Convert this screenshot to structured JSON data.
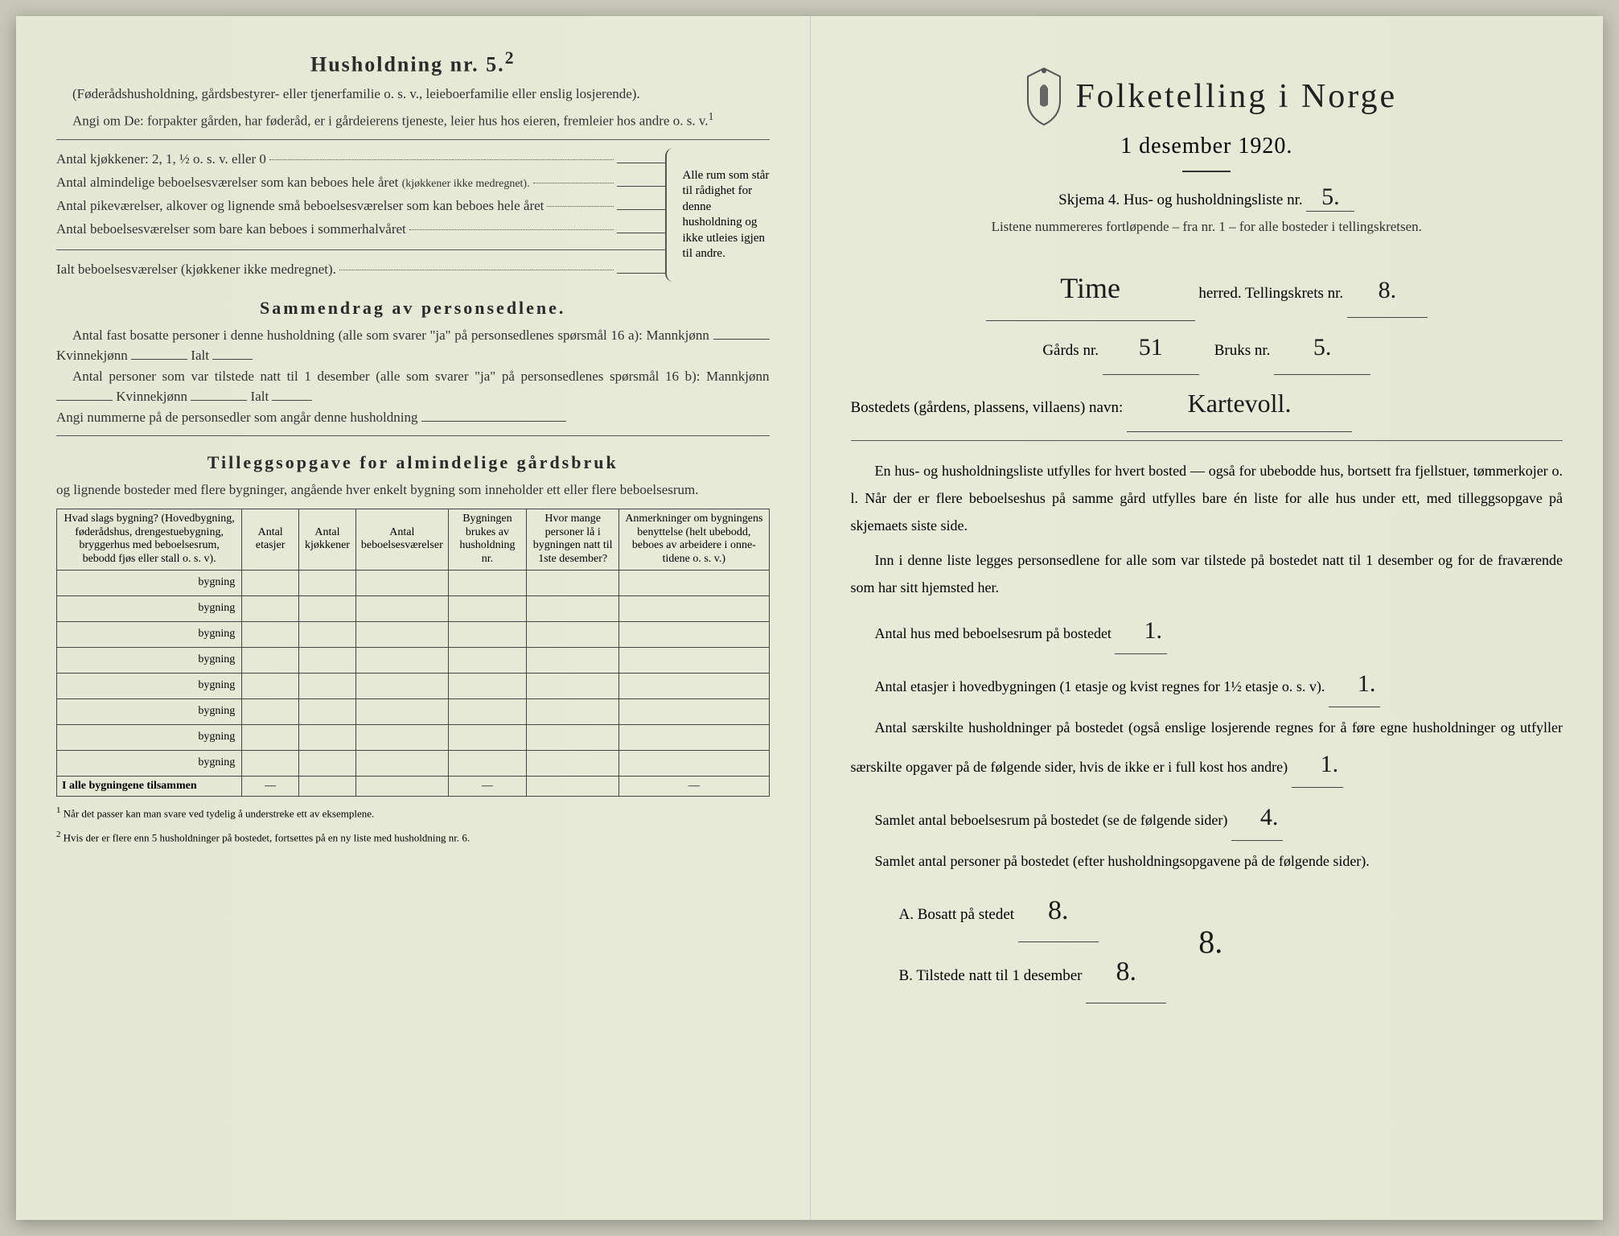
{
  "left": {
    "h5_title": "Husholdning nr. 5.",
    "h5_sup": "2",
    "h5_sub": "(Føderådshusholdning, gårdsbestyrer- eller tjenerfamilie o. s. v., leieboerfamilie eller enslig losjerende).",
    "angi": "Angi om De: forpakter gården, har føderåd, er i gårdeierens tjeneste, leier hus hos eieren, fremleier hos andre o. s. v.",
    "angi_sup": "1",
    "rooms": {
      "kjokken": "Antal kjøkkener: 2, 1, ½ o. s. v. eller 0",
      "almindelige": "Antal almindelige beboelsesværelser som kan beboes hele året",
      "almindelige_note": "(kjøkkener ikke medregnet).",
      "pike": "Antal pikeværelser, alkover og lignende små beboelsesværelser som kan beboes hele året",
      "sommer": "Antal beboelsesværelser som bare kan beboes i sommerhalvåret",
      "ialt": "Ialt beboelsesværelser (kjøkkener ikke medregnet).",
      "brace_text": "Alle rum som står til rådighet for denne husholdning og ikke utleies igjen til andre."
    },
    "sammendrag_title": "Sammendrag av personsedlene.",
    "sammendrag_a": "Antal fast bosatte personer i denne husholdning (alle som svarer \"ja\" på personsedlenes spørsmål 16 a): Mannkjønn",
    "kvinne": "Kvinnekjønn",
    "ialt_lbl": "Ialt",
    "sammendrag_b": "Antal personer som var tilstede natt til 1 desember (alle som svarer \"ja\" på personsedlenes spørsmål 16 b): Mannkjønn",
    "angi_num": "Angi nummerne på de personsedler som angår denne husholdning",
    "tillegg_title": "Tilleggsopgave for almindelige gårdsbruk",
    "tillegg_sub": "og lignende bosteder med flere bygninger, angående hver enkelt bygning som inneholder ett eller flere beboelsesrum.",
    "table": {
      "headers": [
        "Hvad slags bygning?\n(Hovedbygning, føderådshus, drengestuebygning, bryggerhus med beboelsesrum, bebodd fjøs eller stall o. s. v).",
        "Antal etasjer",
        "Antal kjøkkener",
        "Antal beboelsesværelser",
        "Bygningen brukes av husholdning nr.",
        "Hvor mange personer lå i bygningen natt til 1ste desember?",
        "Anmerkninger om bygningens benyttelse (helt ubebodd, beboes av arbeidere i onne-tidene o. s. v.)"
      ],
      "row_label": "bygning",
      "row_count": 8,
      "total_label": "I alle bygningene tilsammen"
    },
    "footnote1": "Når det passer kan man svare ved tydelig å understreke ett av eksemplene.",
    "footnote2": "Hvis der er flere enn 5 husholdninger på bostedet, fortsettes på en ny liste med husholdning nr. 6."
  },
  "right": {
    "main_title": "Folketelling i Norge",
    "date": "1 desember 1920.",
    "skjema": "Skjema 4.  Hus- og husholdningsliste nr.",
    "liste_nr": "5.",
    "listene": "Listene nummereres fortløpende – fra nr. 1 – for alle bosteder i tellingskretsen.",
    "herred_val": "Time",
    "herred_lbl": "herred.  Tellingskrets nr.",
    "krets_nr": "8.",
    "gards_lbl": "Gårds nr.",
    "gards_nr": "51",
    "bruks_lbl": "Bruks nr.",
    "bruks_nr": "5.",
    "bosted_lbl": "Bostedets (gårdens, plassens, villaens) navn:",
    "bosted_val": "Kartevoll.",
    "para1": "En hus- og husholdningsliste utfylles for hvert bosted — også for ubebodde hus, bortsett fra fjellstuer, tømmerkojer o. l.  Når der er flere beboelseshus på samme gård utfylles bare én liste for alle hus under ett, med tilleggsopgave på skjemaets siste side.",
    "para2": "Inn i denne liste legges personsedlene for alle som var tilstede på bostedet natt til 1 desember og for de fraværende som har sitt hjemsted her.",
    "antal_hus": "Antal hus med beboelsesrum på bostedet",
    "antal_hus_val": "1.",
    "antal_etasjer": "Antal etasjer i hovedbygningen (1 etasje og kvist regnes for 1½ etasje o. s. v).",
    "antal_etasjer_val": "1.",
    "antal_hush": "Antal særskilte husholdninger på bostedet (også enslige losjerende regnes for å føre egne husholdninger og utfyller særskilte opgaver på de følgende sider, hvis de ikke er i full kost hos andre)",
    "antal_hush_val": "1.",
    "samlet_rum": "Samlet antal beboelsesrum på bostedet (se de følgende sider)",
    "samlet_rum_val": "4.",
    "samlet_pers": "Samlet antal personer på bostedet (efter husholdningsopgavene på de følgende sider).",
    "bosatt_lbl": "A.  Bosatt på stedet",
    "bosatt_val": "8.",
    "tilstede_lbl": "B.  Tilstede natt til 1 desember",
    "tilstede_val": "8.",
    "margin_val": "8."
  },
  "colors": {
    "paper": "#e8ead8",
    "ink": "#2a2a2a",
    "handwriting": "#1a1a1a",
    "rule": "#444444"
  }
}
